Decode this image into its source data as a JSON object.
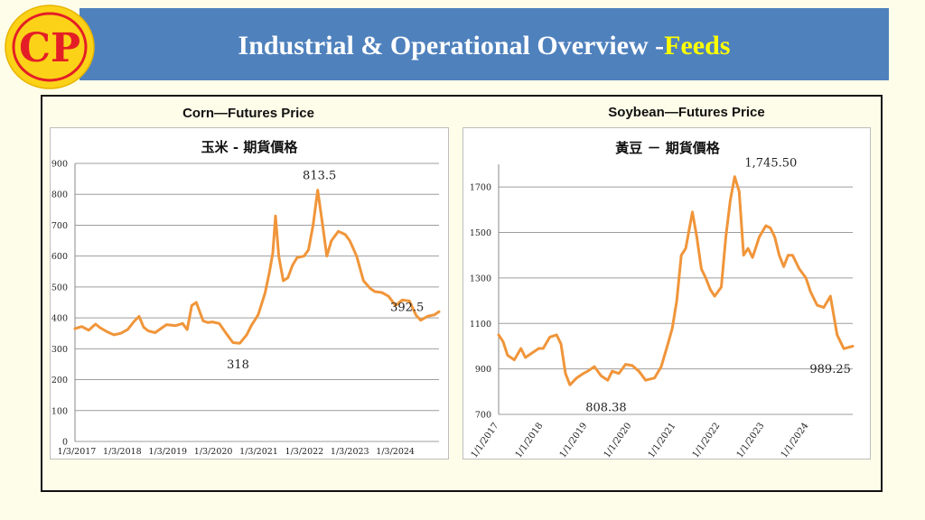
{
  "header": {
    "title_main": "Industrial & Operational Overview -",
    "title_highlight": "Feeds",
    "logo_text": "CP"
  },
  "colors": {
    "header_bg": "#4f81bd",
    "highlight": "#ffff00",
    "line": "#f0953a",
    "logo_red": "#e41e26",
    "logo_yellow": "#fbd217"
  },
  "chart_data": [
    {
      "type": "line",
      "caption": "Corn—Futures Price",
      "title": "玉米 - 期貨價格",
      "ylim": [
        0,
        900
      ],
      "yticks": [
        0,
        100,
        200,
        300,
        400,
        500,
        600,
        700,
        800,
        900
      ],
      "xlim": [
        2017.0,
        2024.95
      ],
      "xtick_labels": [
        "1/3/2017",
        "1/3/2018",
        "1/3/2019",
        "1/3/2020",
        "1/3/2021",
        "1/3/2022",
        "1/3/2023",
        "1/3/2024"
      ],
      "grid": true,
      "series": [
        {
          "x": [
            2017.0,
            2017.15,
            2017.3,
            2017.45,
            2017.55,
            2017.7,
            2017.85,
            2018.0,
            2018.15,
            2018.3,
            2018.4,
            2018.5,
            2018.6,
            2018.75,
            2018.9,
            2019.0,
            2019.2,
            2019.35,
            2019.45,
            2019.55,
            2019.65,
            2019.8,
            2019.9,
            2020.0,
            2020.15,
            2020.3,
            2020.45,
            2020.6,
            2020.75,
            2020.85,
            2021.0,
            2021.15,
            2021.25,
            2021.32,
            2021.38,
            2021.45,
            2021.55,
            2021.65,
            2021.75,
            2021.85,
            2022.0,
            2022.1,
            2022.2,
            2022.3,
            2022.4,
            2022.5,
            2022.6,
            2022.75,
            2022.9,
            2023.0,
            2023.15,
            2023.3,
            2023.45,
            2023.55,
            2023.7,
            2023.85,
            2024.0,
            2024.15,
            2024.3,
            2024.45,
            2024.55,
            2024.7,
            2024.85,
            2024.95
          ],
          "y": [
            365,
            372,
            360,
            380,
            368,
            355,
            345,
            350,
            362,
            390,
            405,
            370,
            358,
            352,
            368,
            378,
            375,
            382,
            362,
            440,
            450,
            390,
            385,
            387,
            382,
            350,
            320,
            318,
            345,
            375,
            410,
            480,
            550,
            610,
            730,
            600,
            520,
            530,
            570,
            595,
            600,
            620,
            700,
            813.5,
            710,
            600,
            650,
            680,
            670,
            650,
            600,
            520,
            495,
            485,
            482,
            470,
            440,
            458,
            455,
            408,
            392.5,
            405,
            410,
            420
          ]
        }
      ],
      "annotations": [
        {
          "text": "813.5",
          "x": 2022.3,
          "y": 813.5
        },
        {
          "text": "318",
          "x": 2020.6,
          "y": 318
        },
        {
          "text": "392.5",
          "x": 2024.55,
          "y": 392.5
        }
      ]
    },
    {
      "type": "line",
      "caption": "Soybean—Futures Price",
      "title": "黃豆 － 期貨價格",
      "ylim": [
        700,
        1800
      ],
      "yticks": [
        700,
        900,
        1100,
        1300,
        1500,
        1700
      ],
      "xlim": [
        2017.0,
        2024.95
      ],
      "xtick_labels": [
        "1/1/2017",
        "1/1/2018",
        "1/1/2019",
        "1/1/2020",
        "1/1/2021",
        "1/1/2022",
        "1/1/2023",
        "1/1/2024"
      ],
      "grid": true,
      "series": [
        {
          "x": [
            2017.0,
            2017.1,
            2017.2,
            2017.35,
            2017.5,
            2017.6,
            2017.75,
            2017.9,
            2018.0,
            2018.15,
            2018.3,
            2018.4,
            2018.5,
            2018.6,
            2018.75,
            2018.9,
            2019.0,
            2019.15,
            2019.3,
            2019.45,
            2019.55,
            2019.7,
            2019.85,
            2020.0,
            2020.15,
            2020.3,
            2020.5,
            2020.65,
            2020.8,
            2020.9,
            2021.0,
            2021.1,
            2021.2,
            2021.35,
            2021.45,
            2021.55,
            2021.65,
            2021.75,
            2021.85,
            2022.0,
            2022.1,
            2022.2,
            2022.3,
            2022.4,
            2022.5,
            2022.6,
            2022.7,
            2022.85,
            2023.0,
            2023.1,
            2023.2,
            2023.3,
            2023.4,
            2023.5,
            2023.6,
            2023.75,
            2023.9,
            2024.0,
            2024.15,
            2024.3,
            2024.45,
            2024.6,
            2024.75,
            2024.95
          ],
          "y": [
            1050,
            1020,
            960,
            940,
            990,
            950,
            970,
            990,
            990,
            1040,
            1050,
            1010,
            880,
            830,
            860,
            880,
            890,
            910,
            870,
            850,
            890,
            880,
            920,
            915,
            890,
            850,
            860,
            910,
            1010,
            1080,
            1200,
            1400,
            1430,
            1590,
            1480,
            1340,
            1300,
            1250,
            1220,
            1260,
            1480,
            1640,
            1745.5,
            1680,
            1400,
            1430,
            1390,
            1480,
            1530,
            1520,
            1480,
            1400,
            1350,
            1400,
            1400,
            1340,
            1300,
            1240,
            1180,
            1170,
            1220,
            1050,
            989.25,
            1000
          ]
        }
      ],
      "annotations": [
        {
          "text": "1,745.50",
          "x": 2022.3,
          "y": 1745.5
        },
        {
          "text": "808.38",
          "x": 2019.25,
          "y": 808.38
        },
        {
          "text": "989.25",
          "x": 2024.75,
          "y": 989.25
        }
      ]
    }
  ]
}
